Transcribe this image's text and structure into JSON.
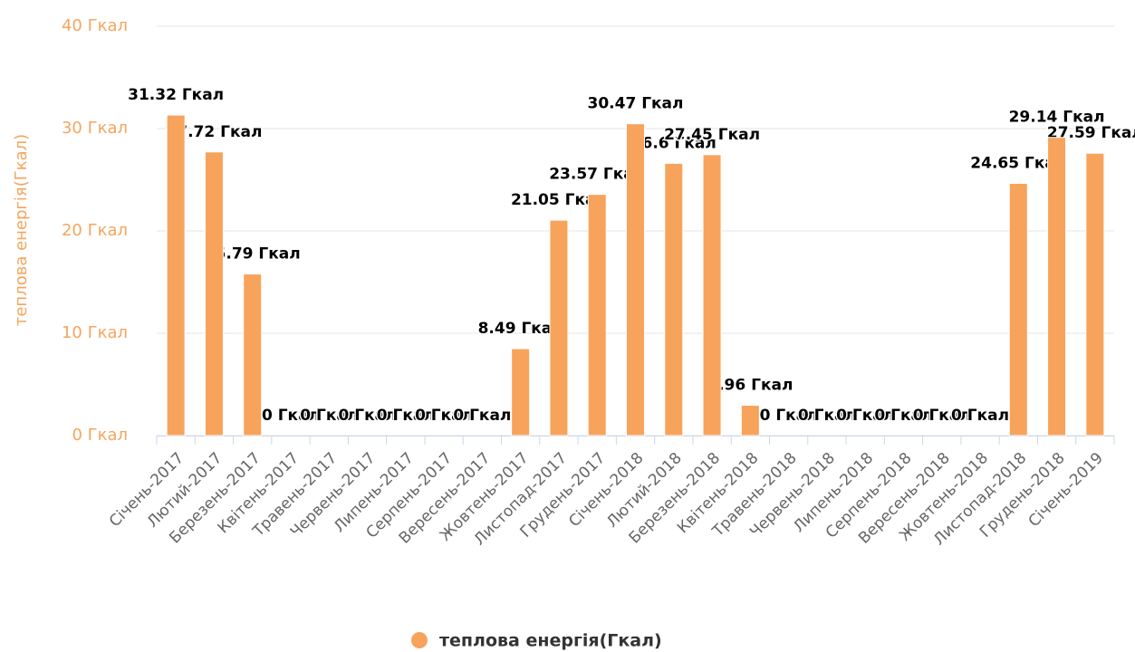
{
  "chart_data": {
    "type": "bar",
    "y_axis_label": "теплова енергія(Гкал)",
    "categories": [
      "Січень-2017",
      "Лютий-2017",
      "Березень-2017",
      "Квітень-2017",
      "Травень-2017",
      "Червень-2017",
      "Липень-2017",
      "Серпень-2017",
      "Вересень-2017",
      "Жовтень-2017",
      "Листопад-2017",
      "Грудень-2017",
      "Січень-2018",
      "Лютий-2018",
      "Березень-2018",
      "Квітень-2018",
      "Травень-2018",
      "Червень-2018",
      "Липень-2018",
      "Серпень-2018",
      "Вересень-2018",
      "Жовтень-2018",
      "Листопад-2018",
      "Грудень-2018",
      "Січень-2019"
    ],
    "series": [
      {
        "name": "теплова енергія(Гкал)",
        "color": "#f7a35c",
        "values": [
          31.32,
          27.72,
          15.79,
          0,
          0,
          0,
          0,
          0,
          0,
          8.49,
          21.05,
          23.57,
          30.47,
          26.6,
          27.45,
          2.96,
          0,
          0,
          0,
          0,
          0,
          0,
          24.65,
          29.14,
          27.59
        ],
        "value_labels": [
          "31.32 Гкал",
          "27.72 Гкал",
          "15.79 Гкал",
          "0 Гкал",
          "0 Гкал",
          "0 Гкал",
          "0 Гкал",
          "0 Гкал",
          "0 Гкал",
          "8.49 Гкал",
          "21.05 Гкал",
          "23.57 Гкал",
          "30.47 Гкал",
          "26.6 Гкал",
          "27.45 Гкал",
          "2.96 Гкал",
          "0 Гкал",
          "0 Гкал",
          "0 Гкал",
          "0 Гкал",
          "0 Гкал",
          "0 Гкал",
          "24.65 Гкал",
          "29.14 Гкал",
          "27.59 Гкал"
        ]
      }
    ],
    "ylim": [
      0,
      40
    ],
    "yticks": [
      {
        "value": 0,
        "label": "0 Гкал"
      },
      {
        "value": 10,
        "label": "10 Гкал"
      },
      {
        "value": 20,
        "label": "20 Гкал"
      },
      {
        "value": 30,
        "label": "30 Гкал"
      },
      {
        "value": 40,
        "label": "40 Гкал"
      }
    ],
    "grid": true
  }
}
